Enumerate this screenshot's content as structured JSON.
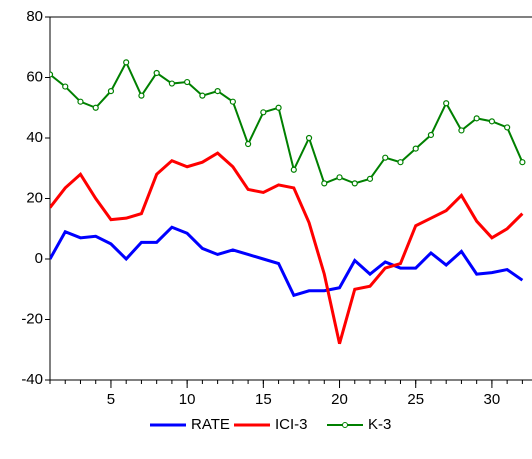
{
  "chart_data": {
    "type": "line",
    "x": [
      1,
      2,
      3,
      4,
      5,
      6,
      7,
      8,
      9,
      10,
      11,
      12,
      13,
      14,
      15,
      16,
      17,
      18,
      19,
      20,
      21,
      22,
      23,
      24,
      25,
      26,
      27,
      28,
      29,
      30,
      31,
      32
    ],
    "series": [
      {
        "name": "RATE",
        "color": "#0000ff",
        "values": [
          0,
          9,
          7,
          7.5,
          5,
          0,
          5.5,
          5.5,
          10.5,
          8.5,
          3.5,
          1.5,
          3,
          1.5,
          0,
          -1.5,
          -12,
          -10.5,
          -10.5,
          -9.5,
          -0.5,
          -5,
          -1,
          -3,
          -3,
          2,
          -2,
          2.5,
          -5,
          -4.5,
          -3.5,
          -7
        ]
      },
      {
        "name": "ICI-3",
        "color": "#ff0000",
        "values": [
          17,
          23.5,
          28,
          20,
          13,
          13.5,
          15,
          28,
          32.5,
          30.5,
          32,
          35,
          30.5,
          23,
          22,
          24.5,
          23.5,
          12,
          -5,
          -28,
          -10,
          -9,
          -3,
          -1.5,
          11,
          13.5,
          16,
          21,
          12.5,
          7,
          10,
          15
        ]
      },
      {
        "name": "K-3",
        "color": "#008000",
        "marker": "circle",
        "values": [
          61,
          57,
          52,
          50,
          55.5,
          65,
          54,
          61.5,
          58,
          58.5,
          54,
          55.5,
          52,
          38,
          48.5,
          50,
          29.5,
          40,
          25,
          27,
          25,
          26.5,
          33.5,
          32,
          36.5,
          41,
          51.5,
          42.5,
          46.5,
          45.5,
          43.5,
          32
        ]
      }
    ],
    "xlim": [
      1,
      32.5
    ],
    "xticks": [
      5,
      10,
      15,
      20,
      25,
      30
    ],
    "ylim": [
      -40,
      80
    ],
    "yticks": [
      80,
      60,
      40,
      20,
      0,
      -20,
      -40
    ],
    "legend": "bottom"
  }
}
